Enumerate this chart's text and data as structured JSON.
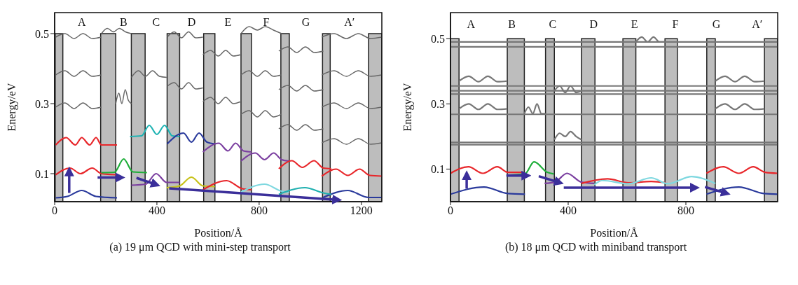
{
  "chart_data": [
    {
      "type": "line",
      "xlabel": "Position/Å",
      "ylabel": "Energy/eV",
      "xlim": [
        0,
        1280
      ],
      "ylim": [
        0.02,
        0.56
      ],
      "xticks": [
        0,
        400,
        800,
        1200
      ],
      "yticks": [
        0.1,
        0.3,
        0.5
      ],
      "grid": false,
      "legend": false,
      "marker": "none",
      "line_style": "solid",
      "annotations": [
        "A",
        "B",
        "C",
        "D",
        "E",
        "F",
        "G",
        "A′",
        "(a) 19 μm QCD with mini-step transport"
      ],
      "bands": [
        {
          "axis": "x",
          "from": 2,
          "to": 32,
          "color": "#bdbdbd"
        },
        {
          "axis": "x",
          "from": 180,
          "to": 239,
          "color": "#bdbdbd"
        },
        {
          "axis": "x",
          "from": 300,
          "to": 354,
          "color": "#bdbdbd"
        },
        {
          "axis": "x",
          "from": 440,
          "to": 489,
          "color": "#bdbdbd"
        },
        {
          "axis": "x",
          "from": 583,
          "to": 627,
          "color": "#bdbdbd"
        },
        {
          "axis": "x",
          "from": 729,
          "to": 770,
          "color": "#bdbdbd"
        },
        {
          "axis": "x",
          "from": 885,
          "to": 918,
          "color": "#bdbdbd"
        },
        {
          "axis": "x",
          "from": 1048,
          "to": 1078,
          "color": "#bdbdbd"
        },
        {
          "axis": "x",
          "from": 1228,
          "to": 1280,
          "color": "#bdbdbd"
        }
      ],
      "series": [
        {
          "color": "#666666",
          "x": [
            4,
            40,
            76,
            111,
            147,
            183
          ],
          "values": [
            0.49,
            0.5,
            0.486,
            0.5,
            0.486,
            0.49
          ]
        },
        {
          "color": "#666666",
          "x": [
            4,
            40,
            76,
            111,
            147,
            183
          ],
          "values": [
            0.382,
            0.394,
            0.378,
            0.394,
            0.378,
            0.382
          ]
        },
        {
          "color": "#666666",
          "x": [
            4,
            40,
            76,
            111,
            147,
            183
          ],
          "values": [
            0.29,
            0.302,
            0.286,
            0.302,
            0.286,
            0.29
          ]
        },
        {
          "color": "#666666",
          "x": [
            183,
            206,
            230,
            253,
            277,
            300
          ],
          "values": [
            0.5,
            0.515,
            0.505,
            0.515,
            0.505,
            0.5
          ]
        },
        {
          "color": "#666666",
          "x": [
            239,
            251,
            263,
            276,
            288,
            300
          ],
          "values": [
            0.3,
            0.33,
            0.3,
            0.34,
            0.31,
            0.3
          ]
        },
        {
          "color": "#666666",
          "x": [
            300,
            328,
            355,
            383,
            410,
            438
          ],
          "values": [
            0.375,
            0.394,
            0.378,
            0.394,
            0.378,
            0.375
          ]
        },
        {
          "color": "#666666",
          "x": [
            440,
            468,
            496,
            524,
            552,
            580
          ],
          "values": [
            0.49,
            0.505,
            0.488,
            0.505,
            0.488,
            0.49
          ]
        },
        {
          "color": "#666666",
          "x": [
            440,
            468,
            496,
            524,
            552,
            580
          ],
          "values": [
            0.35,
            0.36,
            0.342,
            0.36,
            0.342,
            0.345
          ]
        },
        {
          "color": "#666666",
          "x": [
            580,
            610,
            640,
            669,
            699,
            729
          ],
          "values": [
            0.44,
            0.452,
            0.436,
            0.452,
            0.436,
            0.44
          ]
        },
        {
          "color": "#666666",
          "x": [
            580,
            610,
            640,
            669,
            699,
            729
          ],
          "values": [
            0.306,
            0.318,
            0.3,
            0.318,
            0.3,
            0.306
          ]
        },
        {
          "color": "#666666",
          "x": [
            729,
            761,
            793,
            824,
            856,
            888
          ],
          "values": [
            0.5,
            0.52,
            0.51,
            0.52,
            0.51,
            0.5
          ]
        },
        {
          "color": "#666666",
          "x": [
            729,
            761,
            793,
            824,
            856,
            888
          ],
          "values": [
            0.382,
            0.394,
            0.378,
            0.394,
            0.378,
            0.382
          ]
        },
        {
          "color": "#666666",
          "x": [
            729,
            761,
            793,
            824,
            856,
            888
          ],
          "values": [
            0.27,
            0.28,
            0.262,
            0.28,
            0.262,
            0.27
          ]
        },
        {
          "color": "#666666",
          "x": [
            877,
            912,
            947,
            981,
            1016,
            1051
          ],
          "values": [
            0.45,
            0.462,
            0.446,
            0.462,
            0.446,
            0.45
          ]
        },
        {
          "color": "#666666",
          "x": [
            877,
            912,
            947,
            981,
            1016,
            1051
          ],
          "values": [
            0.34,
            0.352,
            0.336,
            0.352,
            0.336,
            0.34
          ]
        },
        {
          "color": "#666666",
          "x": [
            877,
            912,
            947,
            981,
            1016,
            1051
          ],
          "values": [
            0.228,
            0.24,
            0.224,
            0.24,
            0.224,
            0.228
          ]
        },
        {
          "color": "#666666",
          "x": [
            1045,
            1093,
            1141,
            1188,
            1236,
            1280
          ],
          "values": [
            0.49,
            0.5,
            0.486,
            0.5,
            0.486,
            0.49
          ]
        },
        {
          "color": "#666666",
          "x": [
            1045,
            1093,
            1141,
            1188,
            1236,
            1280
          ],
          "values": [
            0.382,
            0.394,
            0.378,
            0.394,
            0.378,
            0.382
          ]
        },
        {
          "color": "#666666",
          "x": [
            1045,
            1093,
            1141,
            1188,
            1236,
            1280
          ],
          "values": [
            0.29,
            0.302,
            0.286,
            0.302,
            0.286,
            0.29
          ]
        },
        {
          "color": "#666666",
          "x": [
            1045,
            1093,
            1141,
            1188,
            1236,
            1280
          ],
          "values": [
            0.188,
            0.2,
            0.184,
            0.2,
            0.184,
            0.188
          ]
        },
        {
          "color": "#e8262a",
          "x": [
            4,
            45,
            81,
            106,
            137,
            162,
            183,
            244
          ],
          "values": [
            0.182,
            0.203,
            0.182,
            0.203,
            0.182,
            0.203,
            0.182,
            0.182
          ]
        },
        {
          "color": "#e8262a",
          "x": [
            4,
            60,
            101,
            147,
            183,
            239
          ],
          "values": [
            0.097,
            0.116,
            0.1,
            0.116,
            0.1,
            0.097
          ]
        },
        {
          "color": "#2a3a9c",
          "x": [
            4,
            50,
            106,
            162,
            244
          ],
          "values": [
            0.031,
            0.035,
            0.052,
            0.035,
            0.031
          ]
        },
        {
          "color": "#1fae3a",
          "x": [
            183,
            234,
            270,
            306,
            361
          ],
          "values": [
            0.103,
            0.104,
            0.142,
            0.105,
            0.103
          ]
        },
        {
          "color": "#1fb3b3",
          "x": [
            295,
            340,
            370,
            400,
            430,
            460,
            489
          ],
          "values": [
            0.206,
            0.208,
            0.238,
            0.212,
            0.238,
            0.208,
            0.206
          ]
        },
        {
          "color": "#2a3a9c",
          "x": [
            440,
            504,
            535,
            565,
            596,
            627
          ],
          "values": [
            0.185,
            0.216,
            0.19,
            0.216,
            0.19,
            0.185
          ]
        },
        {
          "color": "#7b3fa0",
          "x": [
            580,
            642,
            678,
            708,
            739,
            770
          ],
          "values": [
            0.162,
            0.187,
            0.165,
            0.187,
            0.165,
            0.162
          ]
        },
        {
          "color": "#7b3fa0",
          "x": [
            729,
            785,
            821,
            857,
            888,
            918
          ],
          "values": [
            0.136,
            0.159,
            0.14,
            0.159,
            0.14,
            0.136
          ]
        },
        {
          "color": "#e8262a",
          "x": [
            877,
            928,
            969,
            1015,
            1051,
            1082
          ],
          "values": [
            0.114,
            0.137,
            0.118,
            0.137,
            0.116,
            0.114
          ]
        },
        {
          "color": "#e8262a",
          "x": [
            1045,
            1101,
            1147,
            1193,
            1233,
            1280
          ],
          "values": [
            0.093,
            0.113,
            0.095,
            0.113,
            0.095,
            0.093
          ]
        },
        {
          "color": "#2a3a9c",
          "x": [
            1050,
            1147,
            1228,
            1280
          ],
          "values": [
            0.032,
            0.052,
            0.032,
            0.032
          ]
        },
        {
          "color": "#7b3fa0",
          "x": [
            300,
            356,
            397,
            438,
            489
          ],
          "values": [
            0.067,
            0.07,
            0.1,
            0.075,
            0.075
          ]
        },
        {
          "color": "#c8c21a",
          "x": [
            438,
            489,
            535,
            580,
            627
          ],
          "values": [
            0.06,
            0.065,
            0.09,
            0.065,
            0.063
          ]
        },
        {
          "color": "#e8262a",
          "x": [
            580,
            673,
            734,
            770
          ],
          "values": [
            0.054,
            0.08,
            0.057,
            0.054
          ]
        },
        {
          "color": "#7fd8e0",
          "x": [
            729,
            821,
            888,
            918
          ],
          "values": [
            0.047,
            0.07,
            0.05,
            0.047
          ]
        },
        {
          "color": "#20b0b0",
          "x": [
            877,
            979,
            1051,
            1082
          ],
          "values": [
            0.041,
            0.06,
            0.045,
            0.041
          ]
        }
      ]
    },
    {
      "type": "line",
      "xlabel": "Position/Å",
      "ylabel": "Energy/eV",
      "xlim": [
        0,
        1112
      ],
      "ylim": [
        0,
        0.58
      ],
      "xticks": [
        0,
        400,
        800
      ],
      "yticks": [
        0.1,
        0.3,
        0.5
      ],
      "grid": false,
      "legend": false,
      "marker": "none",
      "line_style": "solid",
      "annotations": [
        "A",
        "B",
        "C",
        "D",
        "E",
        "F",
        "G",
        "A′",
        "(b) 18 μm QCD with miniband transport"
      ],
      "bands": [
        {
          "axis": "x",
          "from": 0,
          "to": 29,
          "color": "#bdbdbd"
        },
        {
          "axis": "x",
          "from": 193,
          "to": 251,
          "color": "#bdbdbd"
        },
        {
          "axis": "x",
          "from": 323,
          "to": 353,
          "color": "#bdbdbd"
        },
        {
          "axis": "x",
          "from": 445,
          "to": 491,
          "color": "#bdbdbd"
        },
        {
          "axis": "x",
          "from": 586,
          "to": 630,
          "color": "#bdbdbd"
        },
        {
          "axis": "x",
          "from": 729,
          "to": 771,
          "color": "#bdbdbd"
        },
        {
          "axis": "x",
          "from": 871,
          "to": 900,
          "color": "#bdbdbd"
        },
        {
          "axis": "x",
          "from": 1067,
          "to": 1112,
          "color": "#bdbdbd"
        }
      ],
      "series": [
        {
          "color": "#777777",
          "x": [
            0,
            1112
          ],
          "values": [
            0.49,
            0.49
          ]
        },
        {
          "color": "#777777",
          "x": [
            0,
            1112
          ],
          "values": [
            0.475,
            0.475
          ]
        },
        {
          "color": "#777777",
          "x": [
            0,
            1112
          ],
          "values": [
            0.355,
            0.355
          ]
        },
        {
          "color": "#777777",
          "x": [
            0,
            1112
          ],
          "values": [
            0.34,
            0.34
          ]
        },
        {
          "color": "#777777",
          "x": [
            0,
            1112
          ],
          "values": [
            0.33,
            0.33
          ]
        },
        {
          "color": "#777777",
          "x": [
            0,
            1112
          ],
          "values": [
            0.268,
            0.268
          ]
        },
        {
          "color": "#777777",
          "x": [
            0,
            1112
          ],
          "values": [
            0.182,
            0.182
          ]
        },
        {
          "color": "#777777",
          "x": [
            0,
            1112
          ],
          "values": [
            0.175,
            0.175
          ]
        },
        {
          "color": "#777777",
          "x": [
            29,
            62,
            95,
            127,
            160,
            193
          ],
          "values": [
            0.37,
            0.385,
            0.368,
            0.385,
            0.368,
            0.37
          ]
        },
        {
          "color": "#777777",
          "x": [
            29,
            62,
            95,
            127,
            160,
            193
          ],
          "values": [
            0.285,
            0.3,
            0.283,
            0.3,
            0.283,
            0.285
          ]
        },
        {
          "color": "#777777",
          "x": [
            251,
            265,
            280,
            294,
            309,
            323
          ],
          "values": [
            0.27,
            0.29,
            0.27,
            0.3,
            0.27,
            0.27
          ]
        },
        {
          "color": "#777777",
          "x": [
            353,
            371,
            390,
            408,
            427,
            445
          ],
          "values": [
            0.19,
            0.21,
            0.2,
            0.215,
            0.2,
            0.19
          ]
        },
        {
          "color": "#777777",
          "x": [
            353,
            371,
            390,
            408,
            427,
            445
          ],
          "values": [
            0.34,
            0.355,
            0.335,
            0.355,
            0.335,
            0.34
          ]
        },
        {
          "color": "#777777",
          "x": [
            900,
            933,
            967,
            1000,
            1034,
            1067
          ],
          "values": [
            0.37,
            0.385,
            0.368,
            0.385,
            0.368,
            0.37
          ]
        },
        {
          "color": "#777777",
          "x": [
            900,
            933,
            967,
            1000,
            1034,
            1067
          ],
          "values": [
            0.285,
            0.3,
            0.283,
            0.3,
            0.283,
            0.285
          ]
        },
        {
          "color": "#777777",
          "x": [
            630,
            650,
            670,
            690,
            710,
            729
          ],
          "values": [
            0.49,
            0.505,
            0.49,
            0.505,
            0.49,
            0.49
          ]
        },
        {
          "color": "#e8262a",
          "x": [
            0,
            61,
            110,
            159,
            195,
            250
          ],
          "values": [
            0.087,
            0.107,
            0.087,
            0.107,
            0.09,
            0.09
          ]
        },
        {
          "color": "#2a3a9c",
          "x": [
            0,
            114,
            195,
            253
          ],
          "values": [
            0.023,
            0.045,
            0.025,
            0.023
          ]
        },
        {
          "color": "#1fae3a",
          "x": [
            190,
            253,
            284,
            329,
            351
          ],
          "values": [
            0.081,
            0.085,
            0.122,
            0.09,
            0.085
          ]
        },
        {
          "color": "#7b3fa0",
          "x": [
            320,
            355,
            396,
            445,
            489
          ],
          "values": [
            0.056,
            0.06,
            0.087,
            0.06,
            0.056
          ]
        },
        {
          "color": "#e8262a",
          "x": [
            445,
            534,
            605,
            682,
            732
          ],
          "values": [
            0.056,
            0.07,
            0.058,
            0.062,
            0.058
          ]
        },
        {
          "color": "#7fd8e0",
          "x": [
            489,
            516,
            605,
            682,
            739,
            819,
            900
          ],
          "values": [
            0.052,
            0.065,
            0.055,
            0.073,
            0.055,
            0.077,
            0.056
          ]
        },
        {
          "color": "#e8262a",
          "x": [
            870,
            927,
            980,
            1029,
            1069,
            1112
          ],
          "values": [
            0.087,
            0.107,
            0.087,
            0.107,
            0.09,
            0.087
          ]
        },
        {
          "color": "#2a3a9c",
          "x": [
            870,
            980,
            1065,
            1112
          ],
          "values": [
            0.023,
            0.045,
            0.025,
            0.023
          ]
        }
      ]
    }
  ]
}
